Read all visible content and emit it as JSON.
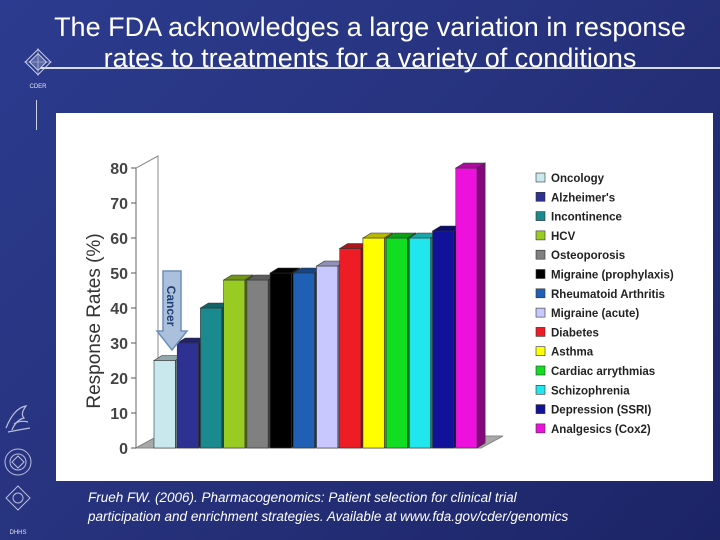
{
  "slide": {
    "title_line1": "The FDA acknowledges a large variation in response",
    "title_line2": "rates to treatments for a variety of conditions",
    "logo_top_text": "CDER",
    "logo_bottom_text": "DHHS",
    "citation_line1": "Frueh FW. (2006). Pharmacogenomics: Patient selection for clinical trial",
    "citation_line2": "participation and enrichment strategies. Available at www.fda.gov/cder/genomics",
    "arrow_label": "Cancer"
  },
  "chart_data": {
    "type": "bar",
    "title": "",
    "xlabel": "",
    "ylabel": "Response Rates (%)",
    "ylim": [
      0,
      80
    ],
    "yticks": [
      "0",
      "10",
      "20",
      "30",
      "40",
      "50",
      "60",
      "70",
      "80"
    ],
    "grid": false,
    "legend_position": "right",
    "style": "3d",
    "categories": [
      "Oncology",
      "Alzheimer's",
      "Incontinence",
      "HCV",
      "Osteoporosis",
      "Migraine (prophylaxis)",
      "Rheumatoid Arthritis",
      "Migraine (acute)",
      "Diabetes",
      "Asthma",
      "Cardiac arrythmias",
      "Schizophrenia",
      "Depression (SSRI)",
      "Analgesics (Cox2)"
    ],
    "values": [
      25,
      30,
      40,
      48,
      48,
      50,
      50,
      52,
      57,
      60,
      60,
      60,
      62,
      80
    ],
    "colors": [
      "#c8e8ee",
      "#2e3192",
      "#1b8a8e",
      "#99cc22",
      "#808080",
      "#000000",
      "#1f5fb4",
      "#c8c8ff",
      "#ee1c24",
      "#ffff00",
      "#11dd22",
      "#22e6ee",
      "#111199",
      "#ee11dd"
    ]
  }
}
